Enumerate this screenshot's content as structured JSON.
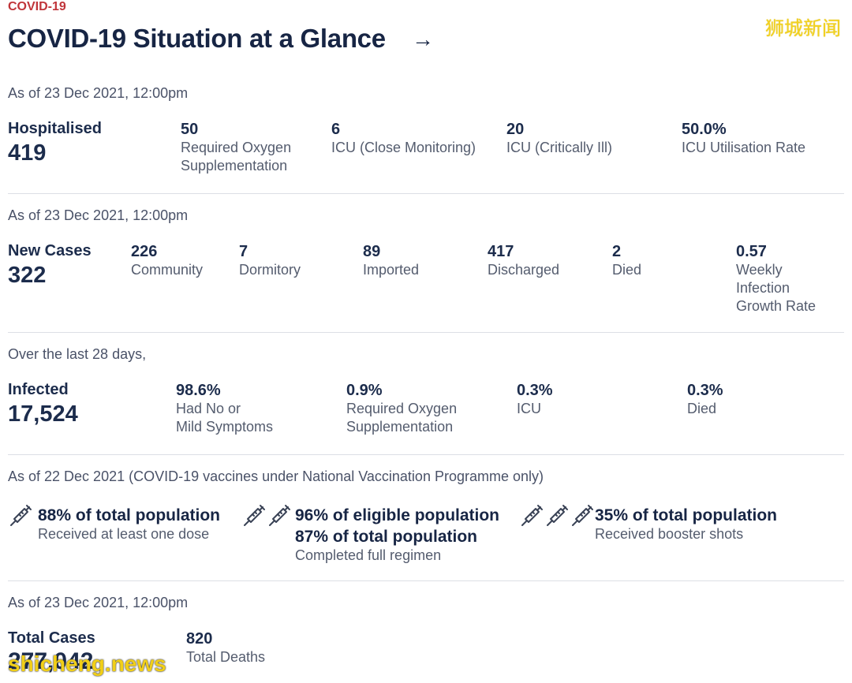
{
  "header": {
    "tag": "COVID-19",
    "title": "COVID-19 Situation at a Glance",
    "arrow": "→",
    "watermark": "狮城新闻"
  },
  "hospital": {
    "asof": "As of 23 Dec 2021, 12:00pm",
    "label": "Hospitalised",
    "total": "419",
    "stats": [
      {
        "value": "50",
        "line1": "Required Oxygen",
        "line2": "Supplementation"
      },
      {
        "value": "6",
        "line1": "ICU (Close Monitoring)",
        "line2": ""
      },
      {
        "value": "20",
        "line1": "ICU (Critically Ill)",
        "line2": ""
      },
      {
        "value": "50.0%",
        "line1": "ICU Utilisation Rate",
        "line2": ""
      }
    ]
  },
  "cases": {
    "asof": "As of 23 Dec 2021, 12:00pm",
    "label": "New Cases",
    "total": "322",
    "stats": [
      {
        "value": "226",
        "line1": "Community"
      },
      {
        "value": "7",
        "line1": "Dormitory"
      },
      {
        "value": "89",
        "line1": "Imported"
      },
      {
        "value": "417",
        "line1": "Discharged"
      },
      {
        "value": "2",
        "line1": "Died"
      },
      {
        "value": "0.57",
        "line1": "Weekly",
        "line2": "Infection",
        "line3": "Growth Rate"
      }
    ]
  },
  "infected": {
    "asof": "Over the last 28 days,",
    "label": "Infected",
    "total": "17,524",
    "stats": [
      {
        "value": "98.6%",
        "line1": "Had No or",
        "line2": "Mild Symptoms"
      },
      {
        "value": "0.9%",
        "line1": "Required Oxygen",
        "line2": "Supplementation"
      },
      {
        "value": "0.3%",
        "line1": "ICU",
        "line2": ""
      },
      {
        "value": "0.3%",
        "line1": "Died",
        "line2": ""
      }
    ]
  },
  "vaccination": {
    "asof": "As of 22 Dec 2021 (COVID-19 vaccines under National Vaccination Programme only)",
    "items": [
      {
        "title1": "88% of total population",
        "title2": "",
        "sub": "Received at least one dose"
      },
      {
        "title1": "96% of eligible population",
        "title2": "87% of total population",
        "sub": "Completed full regimen"
      },
      {
        "title1": "35% of total population",
        "title2": "",
        "sub": "Received booster shots"
      }
    ]
  },
  "totals": {
    "asof": "As of 23 Dec 2021, 12:00pm",
    "label": "Total Cases",
    "total": "277,042",
    "deaths_value": "820",
    "deaths_label": "Total Deaths",
    "watermark": "shicheng.news"
  },
  "colors": {
    "accent_red": "#c0353a",
    "navy": "#172544",
    "watermark_yellow": "#f3d21e"
  },
  "icons": [
    "syringe-icon",
    "arrow-right-icon"
  ]
}
